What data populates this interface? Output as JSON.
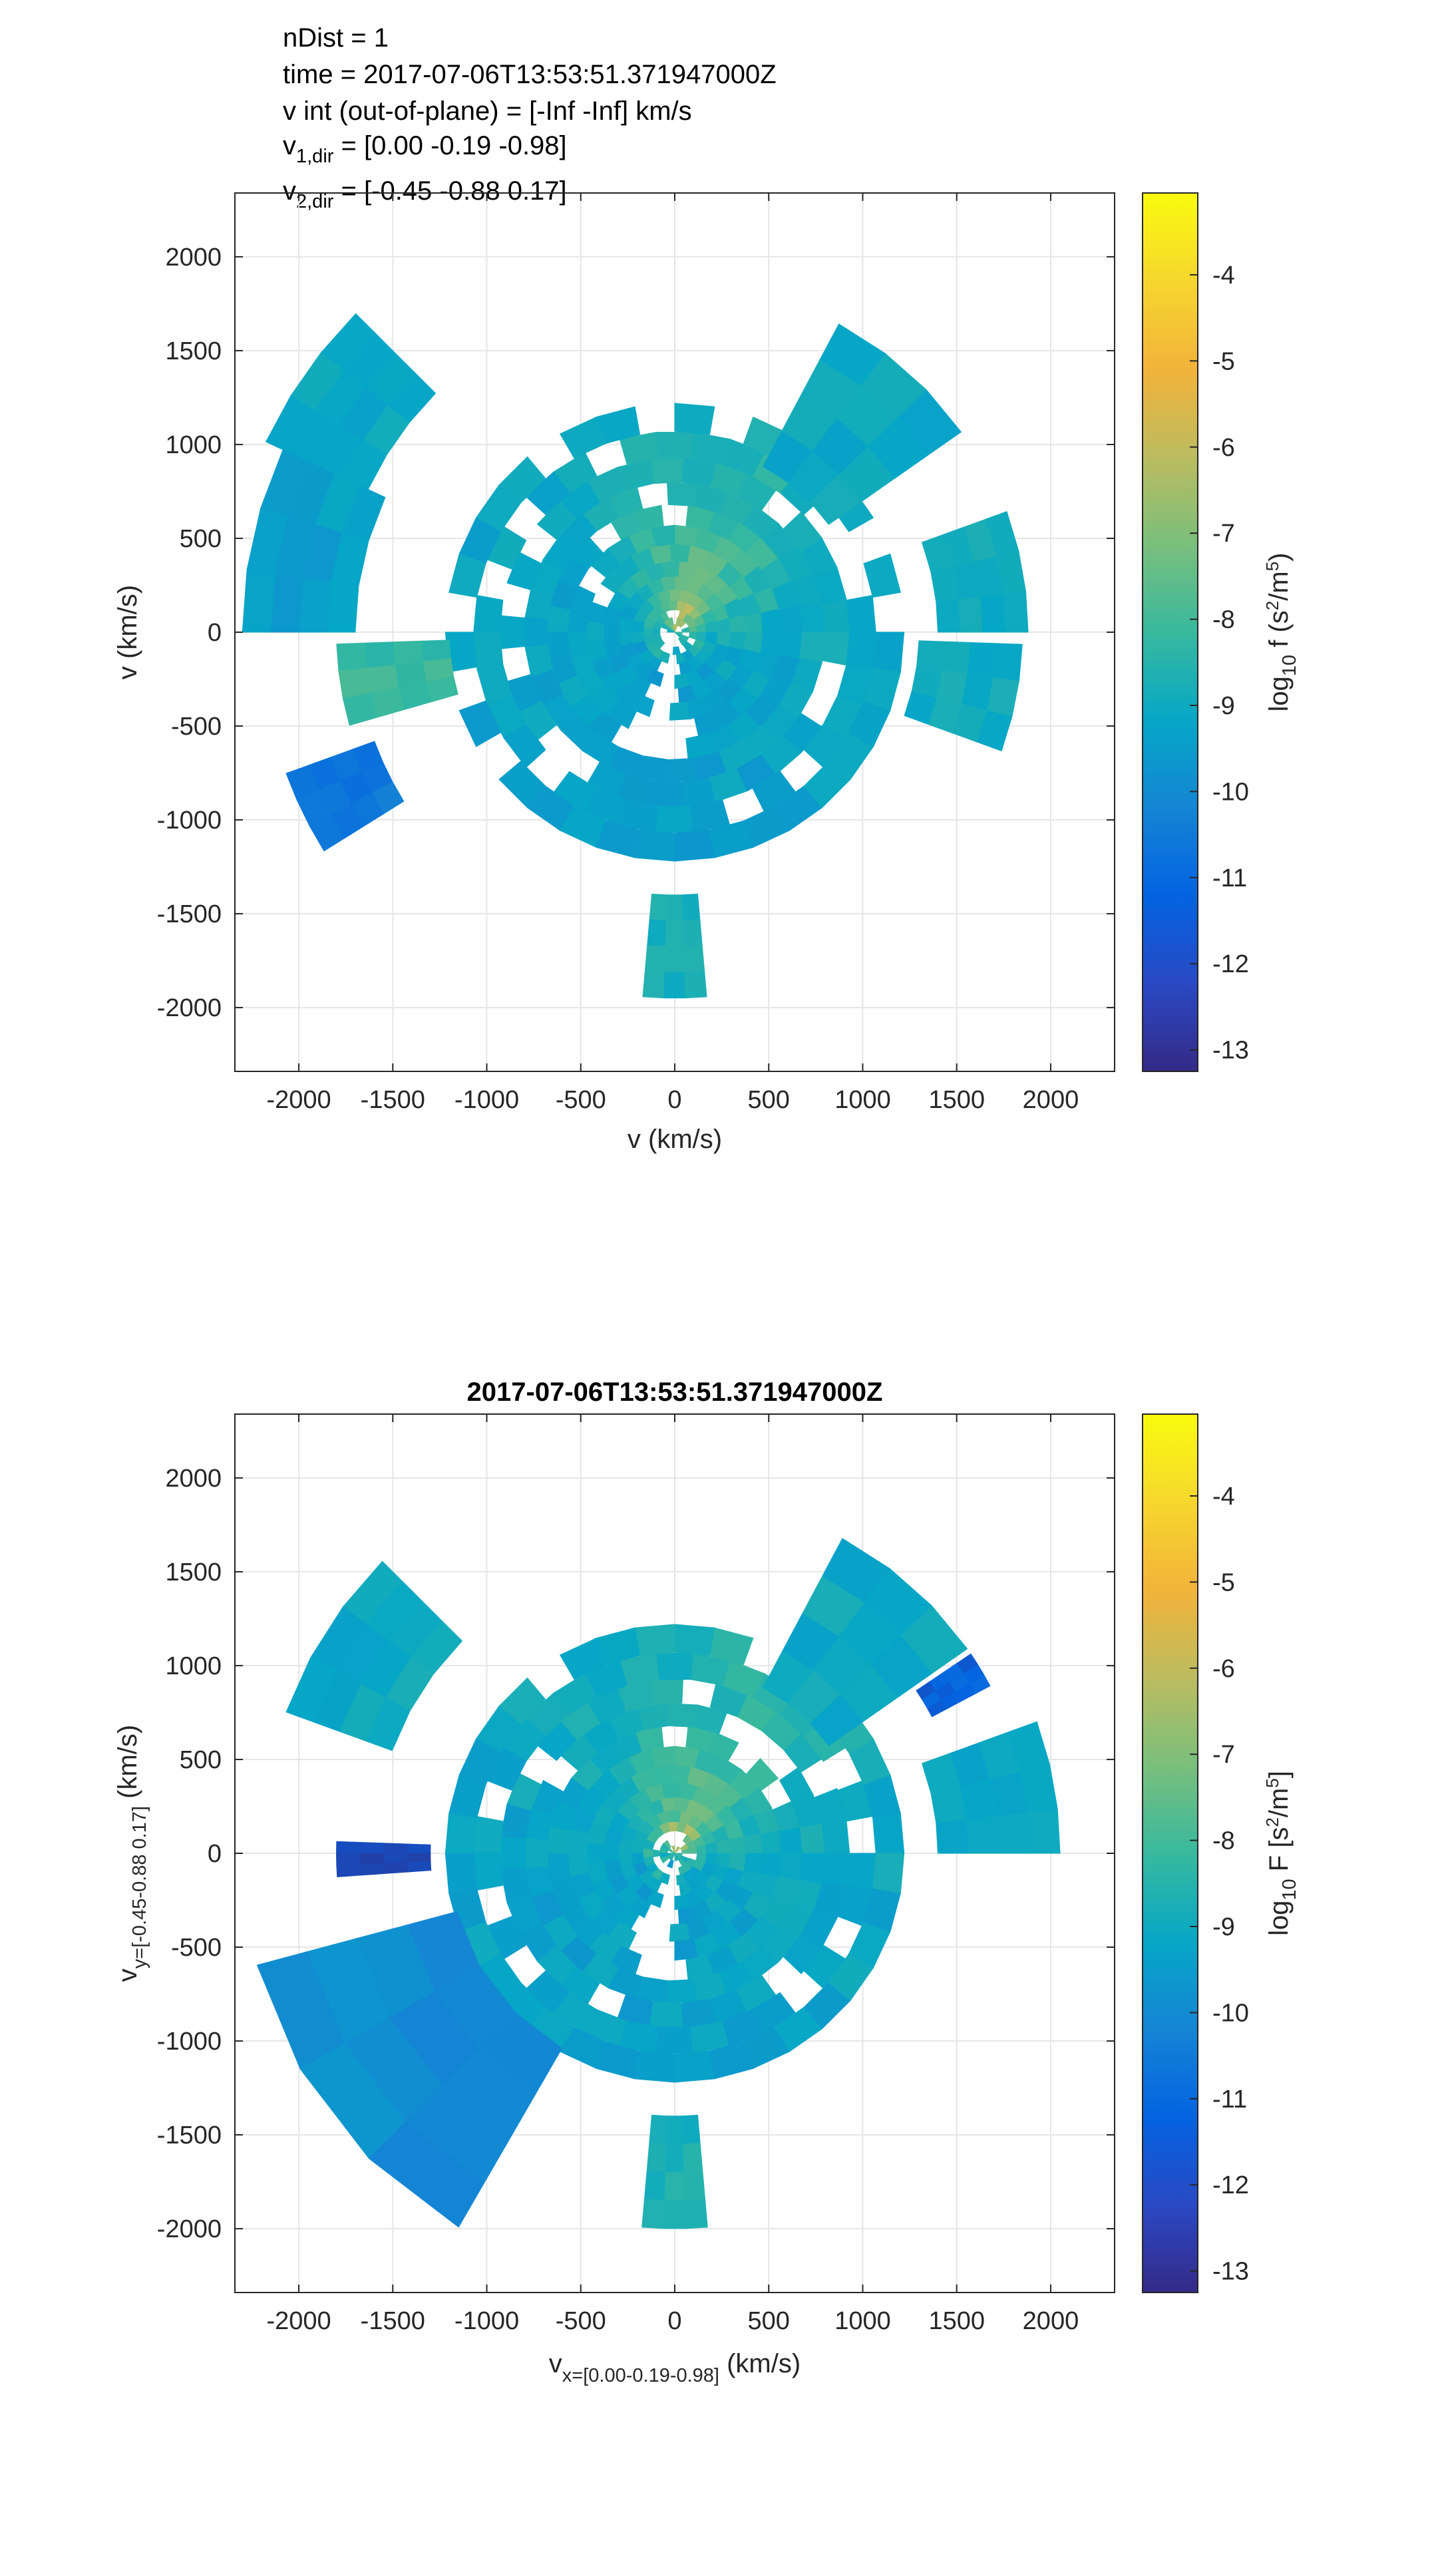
{
  "info_lines": {
    "line1": "nDist = 1",
    "line2": "time = 2017-07-06T13:53:51.371947000Z",
    "line3": "v int (out-of-plane) = [-Inf -Inf] km/s",
    "line4_base": "v",
    "line4_sub": "1,dir",
    "line4_val": " = [0.00 -0.19 -0.98]",
    "line5_base": "v",
    "line5_sub": "2,dir",
    "line5_val": " = [-0.45 -0.88 0.17]"
  },
  "colors": {
    "colormap": [
      "#352a87",
      "#0363e1",
      "#1485d4",
      "#06a7c6",
      "#38b99e",
      "#92bf73",
      "#d9ba56",
      "#fcce2e",
      "#f9fb0e"
    ],
    "axis": "#262626",
    "grid": "#e6e6e6"
  },
  "chart_data": [
    {
      "type": "heatmap",
      "geometry": "polar",
      "title": "",
      "xlabel": "v (km/s)",
      "ylabel": "v (km/s)",
      "xlim": [
        -2340,
        2340
      ],
      "ylim": [
        -2340,
        2340
      ],
      "x_ticks": [
        -2000,
        -1500,
        -1000,
        -500,
        0,
        500,
        1000,
        1500,
        2000
      ],
      "y_ticks": [
        -2000,
        -1500,
        -1000,
        -500,
        0,
        500,
        1000,
        1500,
        2000
      ],
      "x_tick_labels": [
        "-2000",
        "-1500",
        "-1000",
        "-500",
        "0",
        "500",
        "1000",
        "1500",
        "2000"
      ],
      "y_tick_labels": [
        "-2000",
        "-1500",
        "-1000",
        "-500",
        "0",
        "500",
        "1000",
        "1500",
        "2000"
      ],
      "grid": true,
      "colorbar": {
        "label_base": "log",
        "label_sub": "10",
        "label_mid": " f (s",
        "label_sup": "2",
        "label_mid2": "/m",
        "label_sup2": "5",
        "label_end": ")",
        "range": [
          -13.25,
          -3.05
        ],
        "ticks": [
          -13,
          -12,
          -11,
          -10,
          -9,
          -8,
          -7,
          -6,
          -5,
          -4
        ],
        "tick_labels": [
          "-13",
          "-12",
          "-11",
          "-10",
          "-9",
          "-8",
          "-7",
          "-6",
          "-5",
          "-4"
        ]
      },
      "wedges": [
        {
          "a0": 35,
          "a1": 62,
          "r0": 1000,
          "r1": 1860,
          "v": -9.3
        },
        {
          "a0": 135,
          "a1": 155,
          "r0": 1800,
          "r1": 2400,
          "v": -9.4
        },
        {
          "a0": 155,
          "a1": 180,
          "r0": 1700,
          "r1": 2300,
          "v": -9.7
        },
        {
          "a0": 200,
          "a1": 212,
          "r0": 1700,
          "r1": 2200,
          "v": -11.2
        },
        {
          "a0": 182,
          "a1": 196,
          "r0": 1200,
          "r1": 1800,
          "v": -8.2
        },
        {
          "a0": 0,
          "a1": 20,
          "r0": 1400,
          "r1": 1880,
          "v": -9.2
        },
        {
          "a0": 340,
          "a1": 358,
          "r0": 1300,
          "r1": 1850,
          "v": -9.2
        },
        {
          "a0": 265,
          "a1": 275,
          "r0": 1400,
          "r1": 1950,
          "v": -9.0
        }
      ],
      "hole": {
        "a0": 250,
        "a1": 272,
        "r0": 0,
        "r1": 750
      },
      "value_note": "log10 f"
    },
    {
      "type": "heatmap",
      "geometry": "polar",
      "title": "2017-07-06T13:53:51.371947000Z",
      "xlabel_base": "v",
      "xlabel_sub": "x=[0.00-0.19-0.98]",
      "xlabel_end": " (km/s)",
      "ylabel_base": "v",
      "ylabel_sub": "y=[-0.45-0.88 0.17]",
      "ylabel_end": " (km/s)",
      "xlim": [
        -2340,
        2340
      ],
      "ylim": [
        -2340,
        2340
      ],
      "x_ticks": [
        -2000,
        -1500,
        -1000,
        -500,
        0,
        500,
        1000,
        1500,
        2000
      ],
      "y_ticks": [
        -2000,
        -1500,
        -1000,
        -500,
        0,
        500,
        1000,
        1500,
        2000
      ],
      "x_tick_labels": [
        "-2000",
        "-1500",
        "-1000",
        "-500",
        "0",
        "500",
        "1000",
        "1500",
        "2000"
      ],
      "y_tick_labels": [
        "-2000",
        "-1500",
        "-1000",
        "-500",
        "0",
        "500",
        "1000",
        "1500",
        "2000"
      ],
      "grid": true,
      "colorbar": {
        "label_base": "log",
        "label_sub": "10",
        "label_mid": " F [s",
        "label_sup": "2",
        "label_mid2": "/m",
        "label_sup2": "5",
        "label_end": "]",
        "range": [
          -13.25,
          -3.05
        ],
        "ticks": [
          -13,
          -12,
          -11,
          -10,
          -9,
          -8,
          -7,
          -6,
          -5,
          -4
        ],
        "tick_labels": [
          "-13",
          "-12",
          "-11",
          "-10",
          "-9",
          "-8",
          "-7",
          "-6",
          "-5",
          "-4"
        ]
      },
      "wedges": [
        {
          "a0": 35,
          "a1": 62,
          "r0": 1000,
          "r1": 1900,
          "v": -9.3
        },
        {
          "a0": 135,
          "a1": 160,
          "r0": 1600,
          "r1": 2200,
          "v": -9.3
        },
        {
          "a0": 195,
          "a1": 240,
          "r0": 1200,
          "r1": 2300,
          "v": -10.4
        },
        {
          "a0": 178,
          "a1": 184,
          "r0": 1300,
          "r1": 1800,
          "v": -12.8
        },
        {
          "a0": 0,
          "a1": 20,
          "r0": 1400,
          "r1": 2050,
          "v": -9.3
        },
        {
          "a0": 28,
          "a1": 34,
          "r0": 1550,
          "r1": 1900,
          "v": -12.0
        },
        {
          "a0": 265,
          "a1": 275,
          "r0": 1400,
          "r1": 2000,
          "v": -8.9
        }
      ],
      "hole": {
        "a0": 250,
        "a1": 272,
        "r0": 0,
        "r1": 700
      },
      "value_note": "log10 F"
    }
  ]
}
